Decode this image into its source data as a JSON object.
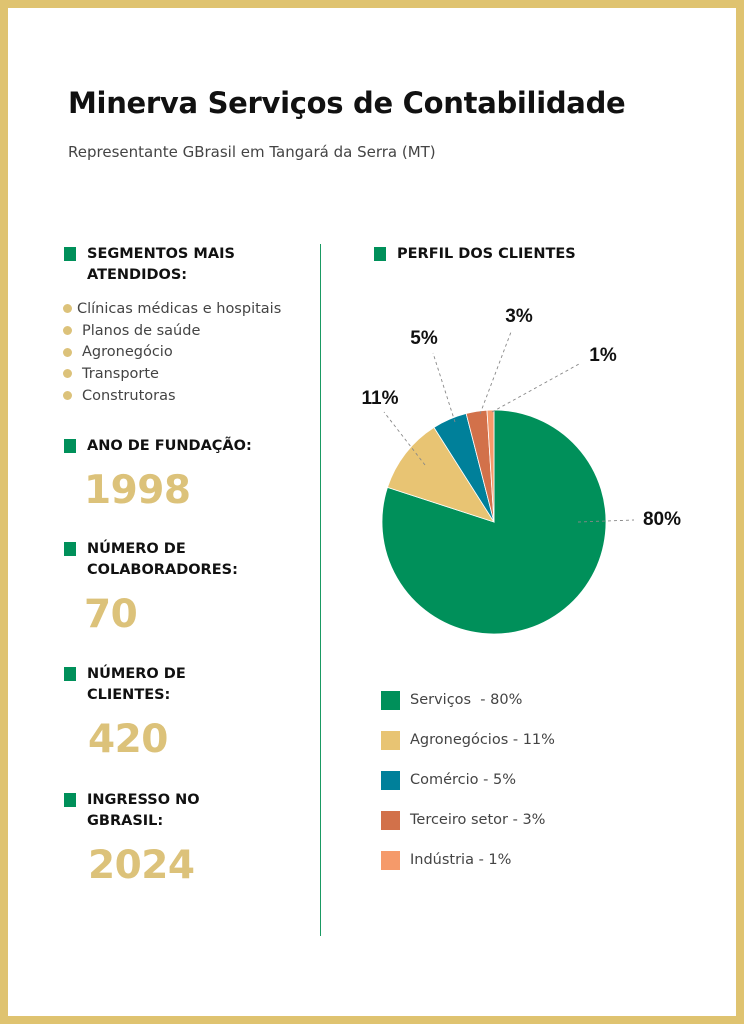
{
  "header": {
    "title": "Minerva Serviços de Contabilidade",
    "subtitle": "Representante GBrasil em Tangará da Serra (MT)"
  },
  "colors": {
    "frame": "#dfc370",
    "accent_green": "#00905a",
    "gold": "#dcc27a"
  },
  "sections": {
    "segments": {
      "title_line1": "SEGMENTOS MAIS",
      "title_line2": "ATENDIDOS:",
      "items": [
        "Clínicas médicas e hospitais",
        "Planos de saúde",
        "Agronegócio",
        "Transporte",
        "Construtoras"
      ]
    },
    "foundation": {
      "title_line1": "ANO DE FUNDAÇÃO:",
      "value": "1998"
    },
    "employees": {
      "title_line1": "NÚMERO DE",
      "title_line2": "COLABORADORES:",
      "value": "70"
    },
    "clients": {
      "title_line1": "NÚMERO DE",
      "title_line2": "CLIENTES:",
      "value": "420"
    },
    "joined": {
      "title_line1": "INGRESSO NO",
      "title_line2": "GBRASIL:",
      "value": "2024"
    },
    "profile": {
      "title_line1": "PERFIL DOS CLIENTES"
    }
  },
  "chart_data": {
    "type": "pie",
    "title": "PERFIL DOS CLIENTES",
    "categories": [
      "Serviços",
      "Agronegócios",
      "Comércio",
      "Terceiro setor",
      "Indústria"
    ],
    "values": [
      80,
      11,
      5,
      3,
      1
    ],
    "data_labels": [
      "80%",
      "11%",
      "5%",
      "3%",
      "1%"
    ],
    "colors": [
      "#00905a",
      "#e8c473",
      "#00809a",
      "#d2714a",
      "#f59a6a"
    ],
    "legend": [
      "Serviços  - 80%",
      "Agronegócios - 11%",
      "Comércio - 5%",
      "Terceiro setor - 3%",
      "Indústria - 1%"
    ],
    "legend_position": "bottom"
  }
}
